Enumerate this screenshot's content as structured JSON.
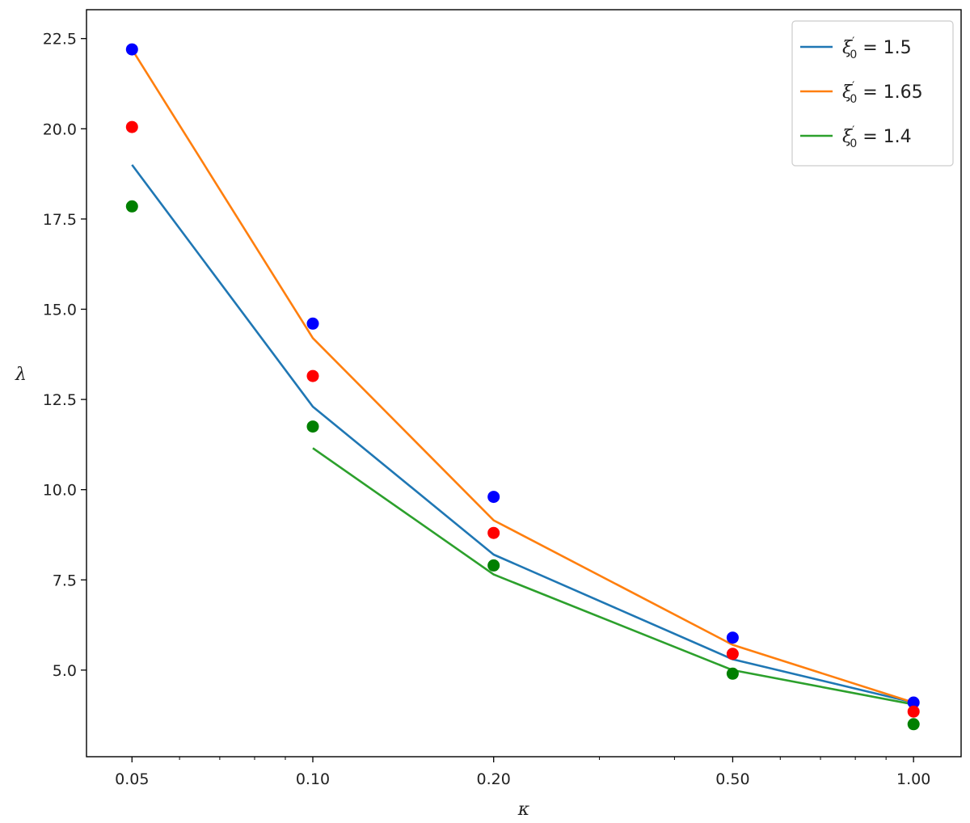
{
  "chart_data": {
    "type": "line",
    "xscale": "log",
    "xlabel": "κ",
    "ylabel": "λ",
    "xlim": [
      0.042,
      1.2
    ],
    "ylim": [
      2.6,
      23.3
    ],
    "xticks": [
      {
        "value": 0.05,
        "label": "0.05"
      },
      {
        "value": 0.1,
        "label": "0.10"
      },
      {
        "value": 0.2,
        "label": "0.20"
      },
      {
        "value": 0.5,
        "label": "0.50"
      },
      {
        "value": 1.0,
        "label": "1.00"
      }
    ],
    "minor_xticks": [
      0.06,
      0.07,
      0.08,
      0.09,
      0.3,
      0.4,
      0.6,
      0.7,
      0.8,
      0.9
    ],
    "yticks": [
      {
        "value": 5.0,
        "label": "5.0"
      },
      {
        "value": 7.5,
        "label": "7.5"
      },
      {
        "value": 10.0,
        "label": "10.0"
      },
      {
        "value": 12.5,
        "label": "12.5"
      },
      {
        "value": 15.0,
        "label": "15.0"
      },
      {
        "value": 17.5,
        "label": "17.5"
      },
      {
        "value": 20.0,
        "label": "20.0"
      },
      {
        "value": 22.5,
        "label": "22.5"
      }
    ],
    "grid": false,
    "legend_position": "top-right",
    "series": [
      {
        "name": "ξ′0 = 1.5",
        "legend": {
          "symbol": "ξ",
          "prime": "′",
          "sub": "0",
          "value": " = 1.5"
        },
        "color": "#1f77b4",
        "kind": "line",
        "x": [
          0.05,
          0.1,
          0.2,
          0.5,
          1.0
        ],
        "y": [
          19.0,
          12.3,
          8.2,
          5.3,
          4.1
        ]
      },
      {
        "name": "ξ′0 = 1.65",
        "legend": {
          "symbol": "ξ",
          "prime": "′",
          "sub": "0",
          "value": " = 1.65"
        },
        "color": "#ff7f0e",
        "kind": "line",
        "x": [
          0.05,
          0.1,
          0.2,
          0.5,
          1.0
        ],
        "y": [
          22.2,
          14.2,
          9.15,
          5.7,
          4.1
        ]
      },
      {
        "name": "ξ′0 = 1.4",
        "legend": {
          "symbol": "ξ",
          "prime": "′",
          "sub": "0",
          "value": " = 1.4"
        },
        "color": "#2ca02c",
        "kind": "line",
        "x": [
          0.1,
          0.2,
          0.5,
          1.0
        ],
        "y": [
          11.15,
          7.65,
          5.0,
          4.05
        ]
      },
      {
        "color": "#0000ff",
        "kind": "scatter",
        "x": [
          0.05,
          0.1,
          0.2,
          0.5,
          1.0
        ],
        "y": [
          22.2,
          14.6,
          9.8,
          5.9,
          4.1
        ]
      },
      {
        "color": "#ff0000",
        "kind": "scatter",
        "x": [
          0.05,
          0.1,
          0.2,
          0.5,
          1.0
        ],
        "y": [
          20.05,
          13.15,
          8.8,
          5.45,
          3.85
        ]
      },
      {
        "color": "#008000",
        "kind": "scatter",
        "x": [
          0.05,
          0.1,
          0.2,
          0.5,
          1.0
        ],
        "y": [
          17.85,
          11.75,
          7.9,
          4.9,
          3.5
        ]
      }
    ]
  }
}
